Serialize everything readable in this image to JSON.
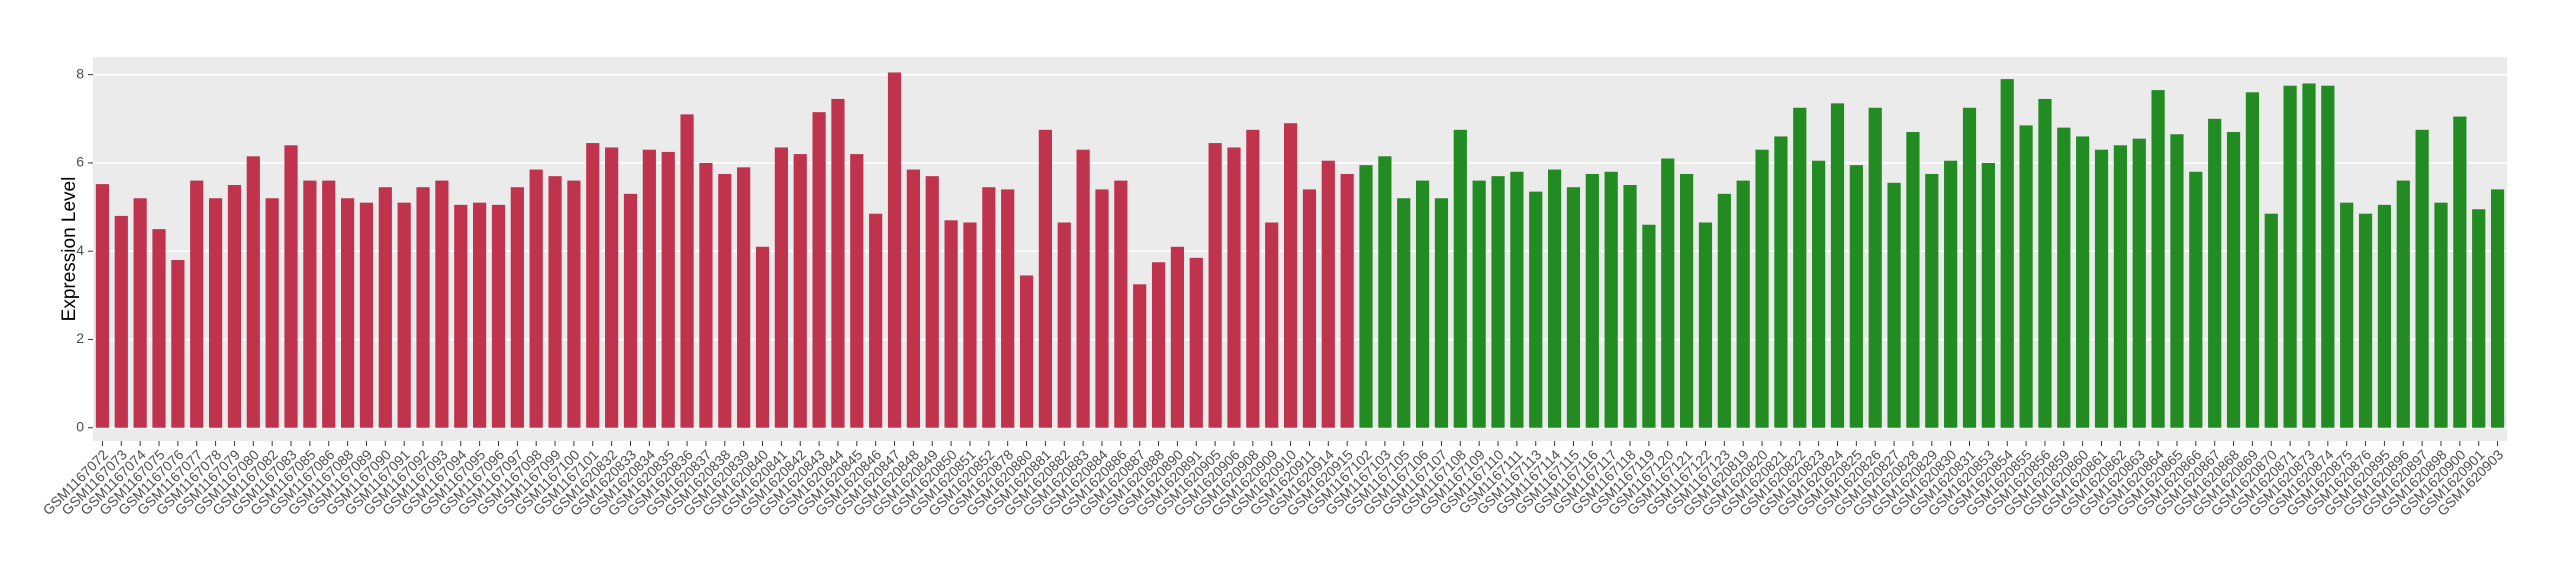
{
  "chart_data": {
    "type": "bar",
    "y_label": "Expression Level",
    "categories": [
      "GSM1167072",
      "GSM1167073",
      "GSM1167074",
      "GSM1167075",
      "GSM1167076",
      "GSM1167077",
      "GSM1167078",
      "GSM1167079",
      "GSM1167080",
      "GSM1167082",
      "GSM1167083",
      "GSM1167085",
      "GSM1167086",
      "GSM1167088",
      "GSM1167089",
      "GSM1167090",
      "GSM1167091",
      "GSM1167092",
      "GSM1167093",
      "GSM1167094",
      "GSM1167095",
      "GSM1167096",
      "GSM1167097",
      "GSM1167098",
      "GSM1167099",
      "GSM1167100",
      "GSM1167101",
      "GSM1620832",
      "GSM1620833",
      "GSM1620834",
      "GSM1620835",
      "GSM1620836",
      "GSM1620837",
      "GSM1620838",
      "GSM1620839",
      "GSM1620840",
      "GSM1620841",
      "GSM1620842",
      "GSM1620843",
      "GSM1620844",
      "GSM1620845",
      "GSM1620846",
      "GSM1620847",
      "GSM1620848",
      "GSM1620849",
      "GSM1620850",
      "GSM1620851",
      "GSM1620852",
      "GSM1620878",
      "GSM1620880",
      "GSM1620881",
      "GSM1620882",
      "GSM1620883",
      "GSM1620884",
      "GSM1620886",
      "GSM1620887",
      "GSM1620888",
      "GSM1620890",
      "GSM1620891",
      "GSM1620905",
      "GSM1620906",
      "GSM1620908",
      "GSM1620909",
      "GSM1620910",
      "GSM1620911",
      "GSM1620914",
      "GSM1620915",
      "GSM1167102",
      "GSM1167103",
      "GSM1167105",
      "GSM1167106",
      "GSM1167107",
      "GSM1167108",
      "GSM1167109",
      "GSM1167110",
      "GSM1167111",
      "GSM1167113",
      "GSM1167114",
      "GSM1167115",
      "GSM1167116",
      "GSM1167117",
      "GSM1167118",
      "GSM1167119",
      "GSM1167120",
      "GSM1167121",
      "GSM1167122",
      "GSM1167123",
      "GSM1620819",
      "GSM1620820",
      "GSM1620821",
      "GSM1620822",
      "GSM1620823",
      "GSM1620824",
      "GSM1620825",
      "GSM1620826",
      "GSM1620827",
      "GSM1620828",
      "GSM1620829",
      "GSM1620830",
      "GSM1620831",
      "GSM1620853",
      "GSM1620854",
      "GSM1620855",
      "GSM1620856",
      "GSM1620859",
      "GSM1620860",
      "GSM1620861",
      "GSM1620862",
      "GSM1620863",
      "GSM1620864",
      "GSM1620865",
      "GSM1620866",
      "GSM1620867",
      "GSM1620868",
      "GSM1620869",
      "GSM1620870",
      "GSM1620871",
      "GSM1620873",
      "GSM1620874",
      "GSM1620875",
      "GSM1620876",
      "GSM1620895",
      "GSM1620896",
      "GSM1620897",
      "GSM1620898",
      "GSM1620900",
      "GSM1620901",
      "GSM1620903"
    ],
    "series": [
      {
        "color": "#C0334D",
        "values": [
          5.52,
          4.8,
          5.2,
          4.5,
          3.8,
          5.6,
          5.2,
          5.5,
          6.15,
          5.2,
          6.4,
          5.6,
          5.6,
          5.2,
          5.1,
          5.45,
          5.1,
          5.45,
          5.6,
          5.05,
          5.1,
          5.05,
          5.45,
          5.85,
          5.7,
          5.6,
          6.45,
          6.35,
          5.3,
          6.3,
          6.25,
          7.1,
          6.0,
          5.75,
          5.9,
          4.1,
          6.35,
          6.2,
          7.15,
          7.45,
          6.2,
          4.85,
          8.05,
          5.85,
          5.7,
          4.7,
          4.65,
          5.45,
          5.4,
          3.45,
          6.75,
          4.65,
          6.3,
          5.4,
          5.6,
          3.25,
          3.75,
          4.1,
          3.85,
          6.45,
          6.35,
          6.75,
          4.65,
          6.9,
          5.4,
          6.05,
          5.75,
          null,
          null,
          null,
          null,
          null,
          null,
          null,
          null,
          null,
          null,
          null,
          null,
          null,
          null,
          null,
          null,
          null,
          null,
          null,
          null,
          null,
          null,
          null,
          null,
          null,
          null,
          null,
          null,
          null,
          null,
          null,
          null,
          null,
          null,
          null,
          null,
          null,
          null,
          null,
          null,
          null,
          null,
          null,
          null,
          null,
          null,
          null,
          null,
          null,
          null,
          null,
          null,
          null,
          null,
          null,
          null,
          null,
          null,
          null,
          null,
          null
        ]
      },
      {
        "color": "#228B22",
        "values": [
          null,
          null,
          null,
          null,
          null,
          null,
          null,
          null,
          null,
          null,
          null,
          null,
          null,
          null,
          null,
          null,
          null,
          null,
          null,
          null,
          null,
          null,
          null,
          null,
          null,
          null,
          null,
          null,
          null,
          null,
          null,
          null,
          null,
          null,
          null,
          null,
          null,
          null,
          null,
          null,
          null,
          null,
          null,
          null,
          null,
          null,
          null,
          null,
          null,
          null,
          null,
          null,
          null,
          null,
          null,
          null,
          null,
          null,
          null,
          null,
          null,
          null,
          null,
          null,
          null,
          null,
          null,
          5.95,
          6.15,
          5.2,
          5.6,
          5.2,
          6.75,
          5.6,
          5.7,
          5.8,
          5.35,
          5.85,
          5.45,
          5.75,
          5.8,
          5.5,
          4.6,
          6.1,
          5.75,
          4.65,
          5.3,
          5.6,
          6.3,
          6.6,
          7.25,
          6.05,
          7.35,
          5.95,
          7.25,
          5.55,
          6.7,
          5.75,
          6.05,
          7.25,
          6.0,
          7.9,
          6.85,
          7.45,
          6.8,
          6.6,
          6.3,
          6.4,
          6.55,
          7.65,
          6.65,
          5.8,
          7.0,
          6.7,
          7.6,
          4.85,
          7.75,
          7.8,
          7.75,
          5.1,
          4.85,
          5.05,
          5.6,
          6.75,
          5.1,
          7.05,
          4.95,
          5.4
        ]
      }
    ],
    "ylim": [
      -0.3,
      8.4
    ],
    "yticks": [
      0,
      2,
      4,
      6,
      8
    ],
    "grid": true
  }
}
